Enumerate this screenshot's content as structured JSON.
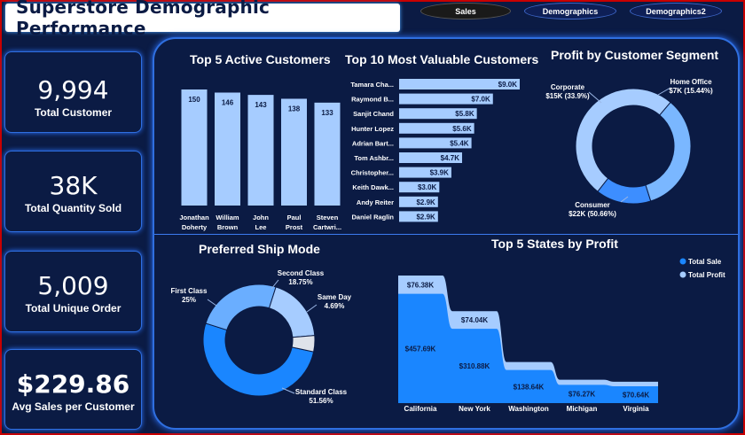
{
  "title": "Superstore Demographic Performance",
  "nav": [
    "Sales",
    "Demographics",
    "Demographics2"
  ],
  "kpis": [
    {
      "value": "9,994",
      "label": "Total Customer"
    },
    {
      "value": "38K",
      "label": "Total Quantity Sold"
    },
    {
      "value": "5,009",
      "label": "Total Unique Order"
    },
    {
      "value": "$229.86",
      "label": "Avg Sales per Customer"
    }
  ],
  "colors": {
    "background": "#0b1b44",
    "accent": "#2f6fe0",
    "bar_light": "#a6ccff",
    "bar_mid": "#4d9bff",
    "bar_dark": "#1a86ff",
    "nav_active": "#1a1a1a"
  },
  "chart_data": [
    {
      "type": "bar",
      "title": "Top 5 Active Customers",
      "categories": [
        "Jonathan Doherty",
        "William Brown",
        "John Lee",
        "Paul Prost",
        "Steven Cartwri..."
      ],
      "values": [
        150,
        146,
        143,
        138,
        133
      ],
      "data_labels": [
        "150",
        "146",
        "143",
        "138",
        "133"
      ],
      "ylim": [
        0,
        150
      ]
    },
    {
      "type": "bar",
      "orientation": "horizontal",
      "title": "Top 10 Most Valuable Customers",
      "categories": [
        "Tamara Cha...",
        "Raymond B...",
        "Sanjit Chand",
        "Hunter Lopez",
        "Adrian Bart...",
        "Tom Ashbr...",
        "Christopher...",
        "Keith Dawk...",
        "Andy Reiter",
        "Daniel Raglin"
      ],
      "values": [
        9.0,
        7.0,
        5.8,
        5.6,
        5.4,
        4.7,
        3.9,
        3.0,
        2.9,
        2.9
      ],
      "data_labels": [
        "$9.0K",
        "$7.0K",
        "$5.8K",
        "$5.6K",
        "$5.4K",
        "$4.7K",
        "$3.9K",
        "$3.0K",
        "$2.9K",
        "$2.9K"
      ],
      "xlim": [
        0,
        9.0
      ]
    },
    {
      "type": "pie",
      "donut": true,
      "title": "Profit by Customer Segment",
      "slices": [
        {
          "name": "Consumer",
          "value": 50.66,
          "label": "$22K (50.66%)",
          "color": "#a6ccff"
        },
        {
          "name": "Corporate",
          "value": 33.9,
          "label": "$15K (33.9%)",
          "color": "#7ab7ff"
        },
        {
          "name": "Home Office",
          "value": 15.44,
          "label": "$7K (15.44%)",
          "color": "#3d8eff"
        }
      ]
    },
    {
      "type": "pie",
      "donut": true,
      "title": "Preferred Ship Mode",
      "slices": [
        {
          "name": "Standard Class",
          "value": 51.56,
          "label": "51.56%",
          "color": "#1a86ff"
        },
        {
          "name": "First Class",
          "value": 25,
          "label": "25%",
          "color": "#6aaeff"
        },
        {
          "name": "Second Class",
          "value": 18.75,
          "label": "18.75%",
          "color": "#a6ccff"
        },
        {
          "name": "Same Day",
          "value": 4.69,
          "label": "4.69%",
          "color": "#dfe3ea"
        }
      ]
    },
    {
      "type": "area",
      "title": "Top 5 States by Profit",
      "categories": [
        "California",
        "New York",
        "Washington",
        "Michigan",
        "Virginia"
      ],
      "series": [
        {
          "name": "Total Sale",
          "values": [
            457.69,
            310.88,
            138.64,
            76.27,
            70.64
          ],
          "labels": [
            "$457.69K",
            "$310.88K",
            "$138.64K",
            "$76.27K",
            "$70.64K"
          ],
          "color": "#1a86ff"
        },
        {
          "name": "Total Profit",
          "values": [
            76.38,
            74.04,
            33.4,
            21.7,
            18.98
          ],
          "labels": [
            "$76.38K",
            "$74.04K",
            "",
            "",
            ""
          ],
          "color": "#a6ccff"
        }
      ],
      "stacked": true,
      "legend": "top-right"
    }
  ]
}
